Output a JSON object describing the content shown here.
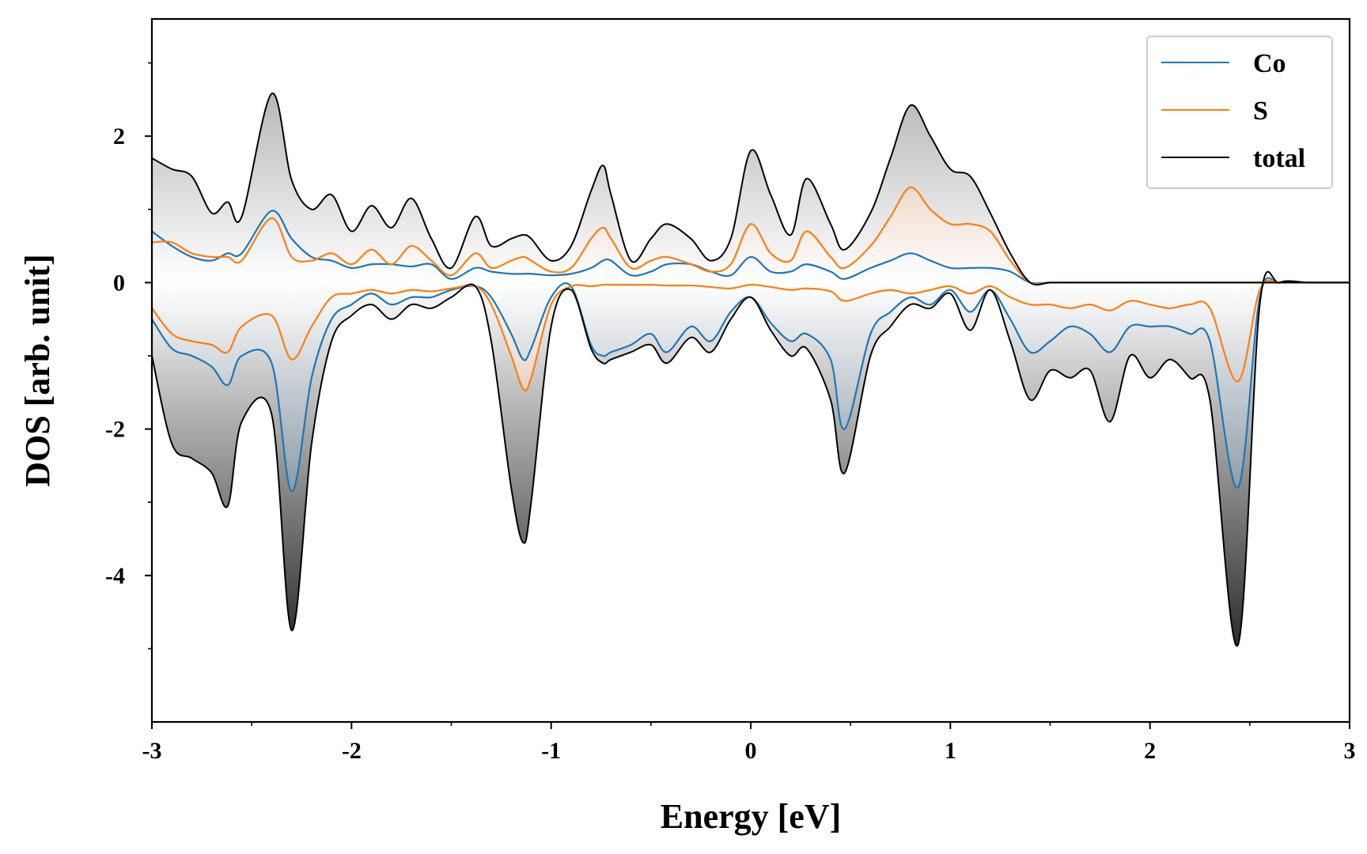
{
  "chart_data": {
    "type": "area",
    "xlabel": "Energy [eV]",
    "ylabel": "DOS [arb. unit]",
    "xlim": [
      -3,
      3
    ],
    "ylim": [
      -6,
      3.6
    ],
    "x_ticks": [
      -3,
      -2,
      -1,
      0,
      1,
      2,
      3
    ],
    "x_tick_labels": [
      "-3",
      "-2",
      "-1",
      "0",
      "1",
      "2",
      "3"
    ],
    "y_ticks": [
      2,
      0,
      -2,
      -4
    ],
    "y_tick_labels": [
      "2",
      "0",
      "-2",
      "-4"
    ],
    "legend_position": "top-right",
    "grid": false,
    "x": [
      -3.0,
      -2.9,
      -2.8,
      -2.7,
      -2.62,
      -2.55,
      -2.4,
      -2.3,
      -2.2,
      -2.1,
      -2.0,
      -1.9,
      -1.8,
      -1.7,
      -1.6,
      -1.5,
      -1.38,
      -1.3,
      -1.2,
      -1.14,
      -1.1,
      -1.0,
      -0.9,
      -0.8,
      -0.74,
      -0.7,
      -0.6,
      -0.5,
      -0.42,
      -0.3,
      -0.2,
      -0.1,
      0.0,
      0.1,
      0.2,
      0.28,
      0.4,
      0.47,
      0.6,
      0.7,
      0.8,
      0.9,
      1.0,
      1.1,
      1.2,
      1.3,
      1.4,
      1.5,
      1.6,
      1.7,
      1.8,
      1.9,
      2.0,
      2.1,
      2.2,
      2.3,
      2.44,
      2.55,
      2.65,
      2.8,
      3.0
    ],
    "series": [
      {
        "name": "Co",
        "color": "#1f77b4",
        "up": [
          0.7,
          0.5,
          0.35,
          0.3,
          0.4,
          0.4,
          0.98,
          0.6,
          0.35,
          0.3,
          0.2,
          0.25,
          0.25,
          0.22,
          0.25,
          0.05,
          0.2,
          0.15,
          0.12,
          0.12,
          0.12,
          0.1,
          0.12,
          0.2,
          0.3,
          0.3,
          0.1,
          0.15,
          0.25,
          0.25,
          0.15,
          0.1,
          0.35,
          0.15,
          0.15,
          0.25,
          0.15,
          0.05,
          0.2,
          0.3,
          0.4,
          0.3,
          0.2,
          0.2,
          0.2,
          0.15,
          0.0,
          0.0,
          0.0,
          0.0,
          0.0,
          0.0,
          0.0,
          0.0,
          0.0,
          0.0,
          0.0,
          0.0,
          0.0,
          0.0,
          0.0
        ],
        "down": [
          -0.5,
          -0.9,
          -1.0,
          -1.15,
          -1.4,
          -1.0,
          -1.1,
          -2.85,
          -1.3,
          -0.5,
          -0.3,
          -0.15,
          -0.3,
          -0.2,
          -0.2,
          -0.1,
          -0.05,
          -0.2,
          -0.7,
          -1.05,
          -0.9,
          -0.2,
          -0.05,
          -0.85,
          -1.0,
          -0.95,
          -0.85,
          -0.7,
          -0.95,
          -0.6,
          -0.8,
          -0.4,
          -0.2,
          -0.55,
          -0.8,
          -0.7,
          -1.05,
          -2.0,
          -0.7,
          -0.4,
          -0.2,
          -0.3,
          -0.1,
          -0.4,
          -0.1,
          -0.5,
          -0.95,
          -0.8,
          -0.6,
          -0.7,
          -0.95,
          -0.6,
          -0.6,
          -0.6,
          -0.7,
          -0.8,
          -2.8,
          -0.2,
          0.0,
          0.0,
          0.0
        ]
      },
      {
        "name": "S",
        "color": "#ff7f0e",
        "up": [
          0.55,
          0.55,
          0.4,
          0.35,
          0.35,
          0.3,
          0.88,
          0.35,
          0.3,
          0.4,
          0.25,
          0.45,
          0.25,
          0.5,
          0.3,
          0.1,
          0.4,
          0.2,
          0.3,
          0.35,
          0.3,
          0.15,
          0.2,
          0.6,
          0.75,
          0.6,
          0.2,
          0.3,
          0.35,
          0.25,
          0.15,
          0.25,
          0.8,
          0.4,
          0.3,
          0.7,
          0.35,
          0.2,
          0.5,
          0.9,
          1.3,
          1.0,
          0.8,
          0.8,
          0.7,
          0.3,
          0.0,
          0.0,
          0.0,
          0.0,
          0.0,
          0.0,
          0.0,
          0.0,
          0.0,
          0.0,
          0.0,
          0.0,
          0.0,
          0.0,
          0.0
        ],
        "down": [
          -0.35,
          -0.7,
          -0.8,
          -0.85,
          -0.95,
          -0.6,
          -0.45,
          -1.05,
          -0.6,
          -0.2,
          -0.15,
          -0.1,
          -0.15,
          -0.1,
          -0.12,
          -0.08,
          -0.05,
          -0.3,
          -1.0,
          -1.45,
          -1.3,
          -0.3,
          -0.05,
          -0.05,
          -0.03,
          -0.03,
          -0.03,
          -0.03,
          -0.04,
          -0.04,
          -0.06,
          -0.08,
          -0.03,
          -0.06,
          -0.1,
          -0.08,
          -0.12,
          -0.25,
          -0.15,
          -0.1,
          -0.15,
          -0.1,
          -0.05,
          -0.15,
          -0.05,
          -0.2,
          -0.3,
          -0.3,
          -0.35,
          -0.3,
          -0.38,
          -0.25,
          -0.3,
          -0.35,
          -0.3,
          -0.35,
          -1.35,
          -0.1,
          0.0,
          0.0,
          0.0
        ]
      },
      {
        "name": "total",
        "color": "#000000",
        "up": [
          1.7,
          1.55,
          1.45,
          0.95,
          1.1,
          0.9,
          2.58,
          1.4,
          1.0,
          1.2,
          0.7,
          1.05,
          0.75,
          1.15,
          0.6,
          0.2,
          0.9,
          0.5,
          0.6,
          0.65,
          0.6,
          0.3,
          0.5,
          1.25,
          1.6,
          1.2,
          0.3,
          0.6,
          0.8,
          0.6,
          0.3,
          0.6,
          1.8,
          1.2,
          0.65,
          1.42,
          0.8,
          0.45,
          0.95,
          1.7,
          2.42,
          2.0,
          1.55,
          1.45,
          0.95,
          0.4,
          0.0,
          0.0,
          0.0,
          0.0,
          0.0,
          0.0,
          0.0,
          0.0,
          0.0,
          0.0,
          0.0,
          0.0,
          0.0,
          0.0,
          0.0
        ],
        "down": [
          -1.0,
          -2.2,
          -2.4,
          -2.6,
          -3.05,
          -1.9,
          -1.8,
          -4.75,
          -2.2,
          -0.8,
          -0.45,
          -0.3,
          -0.5,
          -0.3,
          -0.35,
          -0.2,
          -0.05,
          -0.8,
          -2.8,
          -3.55,
          -3.0,
          -0.6,
          -0.1,
          -0.9,
          -1.1,
          -1.05,
          -0.95,
          -0.85,
          -1.1,
          -0.75,
          -0.95,
          -0.5,
          -0.2,
          -0.65,
          -1.0,
          -0.9,
          -1.6,
          -2.6,
          -1.0,
          -0.6,
          -0.3,
          -0.35,
          -0.15,
          -0.65,
          -0.1,
          -0.8,
          -1.6,
          -1.2,
          -1.3,
          -1.2,
          -1.9,
          -1.0,
          -1.3,
          -1.05,
          -1.3,
          -1.6,
          -4.95,
          -0.3,
          0.0,
          0.0,
          0.0
        ]
      }
    ]
  }
}
